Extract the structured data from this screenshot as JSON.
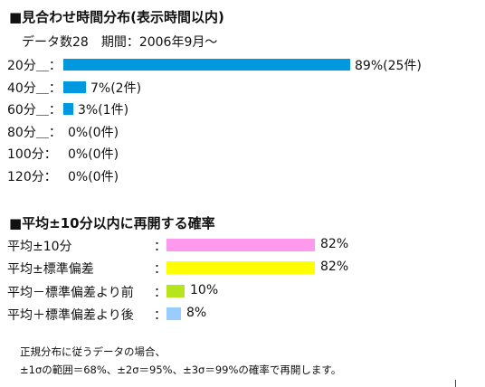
{
  "chart_data": [
    {
      "type": "bar",
      "title": "■見合わせ時間分布(表示時間以内)",
      "subtitle": "データ数28　期間：2006年9月～",
      "categories": [
        "20分＿：",
        "40分＿：",
        "60分＿：",
        "80分＿：",
        "100分：",
        "120分："
      ],
      "values": [
        89,
        7,
        3,
        0,
        0,
        0
      ],
      "data_labels": [
        "89%(25件)",
        "7%(2件)",
        "3%(1件)",
        "0%(0件)",
        "0%(0件)",
        "0%(0件)"
      ],
      "color": "#0099E0",
      "xlim": [
        0,
        100
      ]
    },
    {
      "type": "bar",
      "title": "■平均±10分以内に再開する確率",
      "categories": [
        "平均±10分",
        "平均±標準偏差",
        "平均－標準偏差より前",
        "平均＋標準偏差より後"
      ],
      "values": [
        82,
        82,
        10,
        8
      ],
      "data_labels": [
        "82%",
        "82%",
        "10%",
        "8%"
      ],
      "colors": [
        "#FF99EE",
        "#FFFF00",
        "#B5E61D",
        "#99CCFF"
      ],
      "separator": "：",
      "xlim": [
        0,
        100
      ]
    }
  ],
  "note": {
    "line1": "正規分布に従うデータの場合、",
    "line2": "±1σの範囲＝68%、±2σ＝95%、±3σ＝99%の確率で再開します。"
  }
}
